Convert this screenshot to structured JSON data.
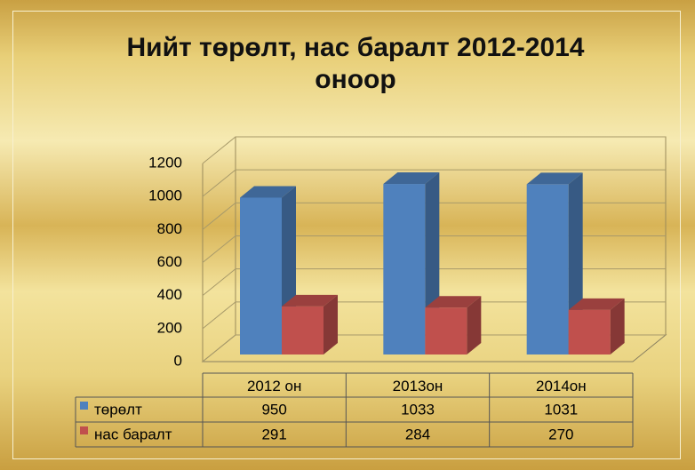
{
  "chart_data": {
    "type": "bar3d",
    "title": "Нийт төрөлт, нас баралт 2012-2014 оноор",
    "categories": [
      "2012 он",
      "2013он",
      "2014он"
    ],
    "series": [
      {
        "name": "төрөлт",
        "color": "#4f81bd",
        "values": [
          950,
          1033,
          1031
        ]
      },
      {
        "name": "нас баралт",
        "color": "#c0504d",
        "values": [
          291,
          284,
          270
        ]
      }
    ],
    "ylim": [
      0,
      1200
    ],
    "yticks": [
      0,
      200,
      400,
      600,
      800,
      1000,
      1200
    ],
    "grid": true
  }
}
